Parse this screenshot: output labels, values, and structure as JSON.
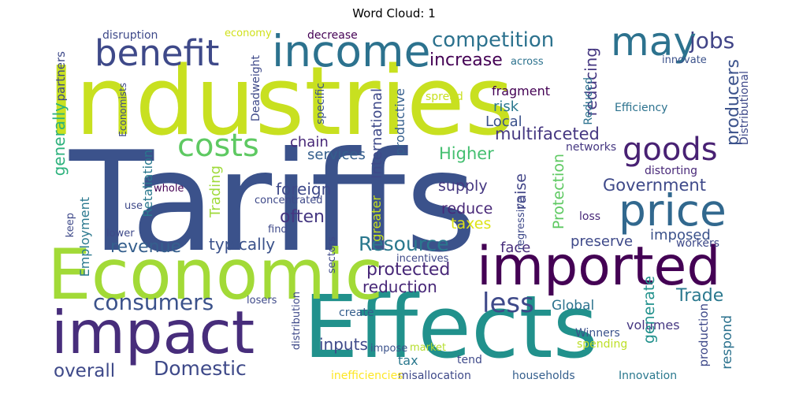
{
  "title": "Word Cloud: 1",
  "words": [
    {
      "text": "Tariffs",
      "color": "#3b528b"
    },
    {
      "text": "Industries",
      "color": "#c8e020"
    },
    {
      "text": "Effects",
      "color": "#21918c"
    },
    {
      "text": "Economic",
      "color": "#a2da37"
    },
    {
      "text": "impact",
      "color": "#472d7b"
    },
    {
      "text": "imported",
      "color": "#440154"
    },
    {
      "text": "income",
      "color": "#2c728e"
    },
    {
      "text": "price",
      "color": "#31688e"
    },
    {
      "text": "may",
      "color": "#2c728e"
    },
    {
      "text": "benefit",
      "color": "#3e4989"
    },
    {
      "text": "costs",
      "color": "#5ec962"
    },
    {
      "text": "goods",
      "color": "#482173"
    },
    {
      "text": "competition",
      "color": "#2c728e"
    },
    {
      "text": "consumers",
      "color": "#3b528b"
    },
    {
      "text": "less",
      "color": "#3e4989"
    },
    {
      "text": "Domestic",
      "color": "#3e4989"
    },
    {
      "text": "jobs",
      "color": "#414487"
    },
    {
      "text": "increase",
      "color": "#440154"
    },
    {
      "text": "revenue",
      "color": "#355f8d"
    },
    {
      "text": "Resource",
      "color": "#2a788e"
    },
    {
      "text": "protected",
      "color": "#482878"
    },
    {
      "text": "Government",
      "color": "#3e4989"
    },
    {
      "text": "overall",
      "color": "#3e4989"
    },
    {
      "text": "Trade",
      "color": "#2a788e"
    },
    {
      "text": "often",
      "color": "#453781"
    },
    {
      "text": "multifaceted",
      "color": "#453781"
    },
    {
      "text": "Higher",
      "color": "#44bf70"
    },
    {
      "text": "typically",
      "color": "#3b528b"
    },
    {
      "text": "reduction",
      "color": "#482878"
    },
    {
      "text": "inputs",
      "color": "#3e4989"
    },
    {
      "text": "producers",
      "color": "#3b528b"
    },
    {
      "text": "reducing",
      "color": "#453781"
    },
    {
      "text": "generally",
      "color": "#2db27d"
    },
    {
      "text": "foreign",
      "color": "#3e4989"
    },
    {
      "text": "supply",
      "color": "#453781"
    },
    {
      "text": "reduce",
      "color": "#482878"
    },
    {
      "text": "taxes",
      "color": "#dde318"
    },
    {
      "text": "services",
      "color": "#355f8d"
    },
    {
      "text": "chain",
      "color": "#482878"
    },
    {
      "text": "Local",
      "color": "#3b528b"
    },
    {
      "text": "risk",
      "color": "#2a788e"
    },
    {
      "text": "imposed",
      "color": "#3b528b"
    },
    {
      "text": "preserve",
      "color": "#3e4989"
    },
    {
      "text": "Global",
      "color": "#2c728e"
    },
    {
      "text": "volumes",
      "color": "#453781"
    },
    {
      "text": "face",
      "color": "#472d7b"
    },
    {
      "text": "tax",
      "color": "#2a788e"
    },
    {
      "text": "fragment",
      "color": "#440154"
    },
    {
      "text": "Efficiency",
      "color": "#2c728e"
    },
    {
      "text": "networks",
      "color": "#453781"
    },
    {
      "text": "distorting",
      "color": "#482878"
    },
    {
      "text": "loss",
      "color": "#482878"
    },
    {
      "text": "workers",
      "color": "#3e4989"
    },
    {
      "text": "innovate",
      "color": "#3b528b"
    },
    {
      "text": "Winners",
      "color": "#3b528b"
    },
    {
      "text": "spending",
      "color": "#bddf26"
    },
    {
      "text": "households",
      "color": "#355f8d"
    },
    {
      "text": "Innovation",
      "color": "#2a788e"
    },
    {
      "text": "misallocation",
      "color": "#3e4989"
    },
    {
      "text": "inefficiencies",
      "color": "#fde725"
    },
    {
      "text": "tend",
      "color": "#3e4989"
    },
    {
      "text": "market",
      "color": "#b5de2b"
    },
    {
      "text": "impose",
      "color": "#3b528b"
    },
    {
      "text": "create",
      "color": "#355f8d"
    },
    {
      "text": "losers",
      "color": "#3e4989"
    },
    {
      "text": "incentives",
      "color": "#3e4989"
    },
    {
      "text": "find",
      "color": "#3e4989"
    },
    {
      "text": "concentrated",
      "color": "#3e4989"
    },
    {
      "text": "use",
      "color": "#3e4989"
    },
    {
      "text": "whole",
      "color": "#440154"
    },
    {
      "text": "lower",
      "color": "#3e4989"
    },
    {
      "text": "keep",
      "color": "#3e4989"
    },
    {
      "text": "disruption",
      "color": "#3e4989"
    },
    {
      "text": "economy",
      "color": "#d0e11c"
    },
    {
      "text": "decrease",
      "color": "#440154"
    },
    {
      "text": "across",
      "color": "#2c728e"
    },
    {
      "text": "spread",
      "color": "#c8e020"
    },
    {
      "text": "specific",
      "color": "#3b528b"
    },
    {
      "text": "Economists",
      "color": "#3e4989"
    },
    {
      "text": "Employment",
      "color": "#2a788e"
    },
    {
      "text": "partners",
      "color": "#3e4989"
    },
    {
      "text": "Retaliation",
      "color": "#2a788e"
    },
    {
      "text": "Trading",
      "color": "#9fda3a"
    },
    {
      "text": "International",
      "color": "#3e4989"
    },
    {
      "text": "greater",
      "color": "#c8e020"
    },
    {
      "text": "productive",
      "color": "#355f8d"
    },
    {
      "text": "raise",
      "color": "#414487"
    },
    {
      "text": "Protection",
      "color": "#5ec962"
    },
    {
      "text": "regressive",
      "color": "#3e4989"
    },
    {
      "text": "sectors",
      "color": "#3e4989"
    },
    {
      "text": "distribution",
      "color": "#3e4989"
    },
    {
      "text": "generate",
      "color": "#21918c"
    },
    {
      "text": "respond",
      "color": "#2c728e"
    },
    {
      "text": "production",
      "color": "#3e4989"
    },
    {
      "text": "Reduced",
      "color": "#2c728e"
    },
    {
      "text": "Distributional",
      "color": "#3e4989"
    },
    {
      "text": "Deadweight",
      "color": "#3e4989"
    }
  ]
}
